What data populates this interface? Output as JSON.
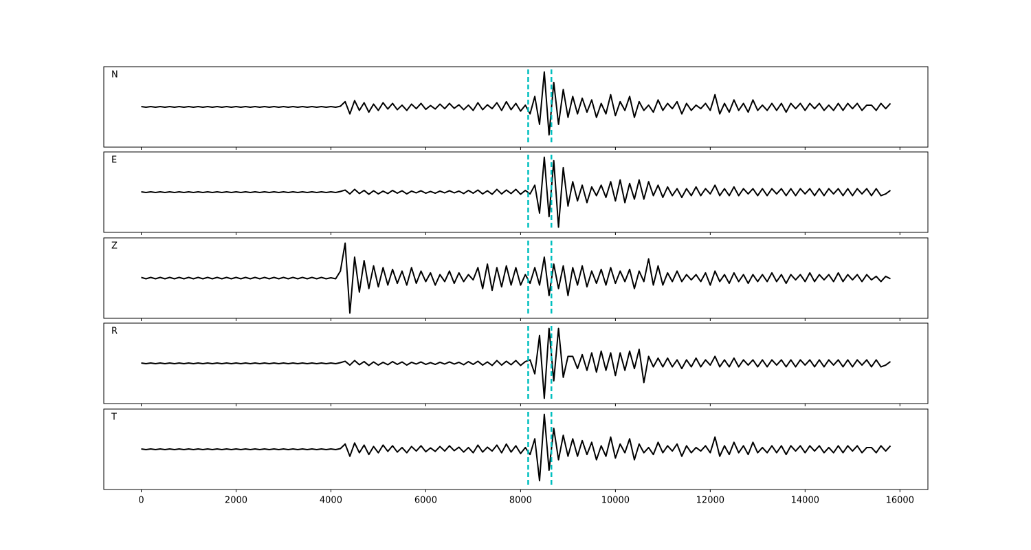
{
  "chart_data": {
    "type": "line",
    "xlim": [
      -790,
      16590
    ],
    "xticks": [
      0,
      2000,
      4000,
      6000,
      8000,
      10000,
      12000,
      14000,
      16000
    ],
    "ylim": [
      -1.15,
      1.15
    ],
    "vlines": {
      "values": [
        8160,
        8650
      ],
      "color": "#00bfbf"
    },
    "x": [
      0,
      100,
      200,
      300,
      400,
      500,
      600,
      700,
      800,
      900,
      1000,
      1100,
      1200,
      1300,
      1400,
      1500,
      1600,
      1700,
      1800,
      1900,
      2000,
      2100,
      2200,
      2300,
      2400,
      2500,
      2600,
      2700,
      2800,
      2900,
      3000,
      3100,
      3200,
      3300,
      3400,
      3500,
      3600,
      3700,
      3800,
      3900,
      4000,
      4100,
      4200,
      4300,
      4400,
      4500,
      4600,
      4700,
      4800,
      4900,
      5000,
      5100,
      5200,
      5300,
      5400,
      5500,
      5600,
      5700,
      5800,
      5900,
      6000,
      6100,
      6200,
      6300,
      6400,
      6500,
      6600,
      6700,
      6800,
      6900,
      7000,
      7100,
      7200,
      7300,
      7400,
      7500,
      7600,
      7700,
      7800,
      7900,
      8000,
      8100,
      8200,
      8300,
      8400,
      8500,
      8600,
      8700,
      8800,
      8900,
      9000,
      9100,
      9200,
      9300,
      9400,
      9500,
      9600,
      9700,
      9800,
      9900,
      10000,
      10100,
      10200,
      10300,
      10400,
      10500,
      10600,
      10700,
      10800,
      10900,
      11000,
      11100,
      11200,
      11300,
      11400,
      11500,
      11600,
      11700,
      11800,
      11900,
      12000,
      12100,
      12200,
      12300,
      12400,
      12500,
      12600,
      12700,
      12800,
      12900,
      13000,
      13100,
      13200,
      13300,
      13400,
      13500,
      13600,
      13700,
      13800,
      13900,
      14000,
      14100,
      14200,
      14300,
      14400,
      14500,
      14600,
      14700,
      14800,
      14900,
      15000,
      15100,
      15200,
      15300,
      15400,
      15500,
      15600,
      15700,
      15800
    ],
    "series": [
      {
        "name": "N",
        "color": "#000000",
        "values": [
          0.01,
          -0.01,
          0.01,
          -0.01,
          0.01,
          -0.01,
          0.01,
          -0.01,
          0.01,
          -0.01,
          0.01,
          -0.01,
          0.01,
          -0.01,
          0.01,
          -0.01,
          0.01,
          -0.01,
          0.01,
          -0.01,
          0.01,
          -0.01,
          0.01,
          -0.01,
          0.01,
          -0.01,
          0.01,
          -0.01,
          0.01,
          -0.01,
          0.01,
          -0.01,
          0.01,
          -0.01,
          0.01,
          -0.01,
          0.01,
          -0.01,
          0.01,
          -0.01,
          0.01,
          -0.01,
          0.02,
          0.15,
          -0.2,
          0.18,
          -0.1,
          0.12,
          -0.15,
          0.08,
          -0.1,
          0.12,
          -0.06,
          0.1,
          -0.08,
          0.05,
          -0.1,
          0.08,
          -0.05,
          0.1,
          -0.07,
          0.04,
          -0.06,
          0.08,
          -0.05,
          0.1,
          -0.04,
          0.06,
          -0.08,
          0.05,
          -0.1,
          0.12,
          -0.08,
          0.06,
          -0.05,
          0.12,
          -0.1,
          0.15,
          -0.08,
          0.1,
          -0.12,
          0.05,
          -0.2,
          0.3,
          -0.5,
          1.0,
          -0.8,
          0.7,
          -0.5,
          0.5,
          -0.3,
          0.3,
          -0.2,
          0.25,
          -0.15,
          0.2,
          -0.3,
          0.1,
          -0.2,
          0.35,
          -0.25,
          0.15,
          -0.1,
          0.3,
          -0.3,
          0.15,
          -0.1,
          0.05,
          -0.15,
          0.2,
          -0.1,
          0.1,
          -0.05,
          0.15,
          -0.2,
          0.1,
          -0.1,
          0.05,
          -0.05,
          0.1,
          -0.1,
          0.35,
          -0.2,
          0.1,
          -0.15,
          0.2,
          -0.1,
          0.1,
          -0.15,
          0.2,
          -0.1,
          0.05,
          -0.1,
          0.1,
          -0.1,
          0.1,
          -0.15,
          0.1,
          -0.05,
          0.1,
          -0.1,
          0.1,
          -0.05,
          0.1,
          -0.1,
          0.05,
          -0.1,
          0.1,
          -0.1,
          0.1,
          -0.05,
          0.1,
          -0.1,
          0.05,
          0.05,
          -0.1,
          0.1,
          -0.05,
          0.1
        ]
      },
      {
        "name": "E",
        "color": "#000000",
        "values": [
          0.01,
          -0.01,
          0.01,
          -0.01,
          0.01,
          -0.01,
          0.01,
          -0.01,
          0.01,
          -0.01,
          0.01,
          -0.01,
          0.01,
          -0.01,
          0.01,
          -0.01,
          0.01,
          -0.01,
          0.01,
          -0.01,
          0.01,
          -0.01,
          0.01,
          -0.01,
          0.01,
          -0.01,
          0.01,
          -0.01,
          0.01,
          -0.01,
          0.01,
          -0.01,
          0.01,
          -0.01,
          0.01,
          -0.01,
          0.01,
          -0.01,
          0.01,
          -0.01,
          0.01,
          -0.01,
          0.02,
          0.06,
          -0.05,
          0.08,
          -0.04,
          0.05,
          -0.06,
          0.04,
          -0.05,
          0.03,
          -0.04,
          0.05,
          -0.03,
          0.04,
          -0.05,
          0.03,
          -0.02,
          0.04,
          -0.03,
          0.02,
          -0.03,
          0.03,
          -0.02,
          0.04,
          -0.02,
          0.03,
          -0.04,
          0.05,
          -0.03,
          0.06,
          -0.05,
          0.04,
          -0.06,
          0.08,
          -0.05,
          0.06,
          -0.04,
          0.08,
          -0.06,
          0.05,
          -0.05,
          0.2,
          -0.6,
          1.0,
          -0.7,
          0.9,
          -1.0,
          0.7,
          -0.4,
          0.3,
          -0.25,
          0.2,
          -0.3,
          0.15,
          -0.1,
          0.2,
          -0.15,
          0.3,
          -0.25,
          0.35,
          -0.3,
          0.25,
          -0.2,
          0.35,
          -0.2,
          0.3,
          -0.1,
          0.2,
          -0.15,
          0.15,
          -0.1,
          0.1,
          -0.15,
          0.1,
          -0.1,
          0.15,
          -0.1,
          0.1,
          -0.05,
          0.2,
          -0.1,
          0.1,
          -0.1,
          0.15,
          -0.1,
          0.1,
          -0.05,
          0.1,
          -0.1,
          0.1,
          -0.1,
          0.1,
          -0.05,
          0.1,
          -0.1,
          0.1,
          -0.1,
          0.1,
          -0.05,
          0.1,
          -0.1,
          0.1,
          -0.1,
          0.1,
          -0.05,
          0.1,
          -0.1,
          0.1,
          -0.1,
          0.1,
          -0.05,
          0.1,
          -0.1,
          0.1,
          -0.1,
          -0.05,
          0.05
        ]
      },
      {
        "name": "Z",
        "color": "#000000",
        "values": [
          0.02,
          -0.02,
          0.02,
          -0.02,
          0.02,
          -0.02,
          0.02,
          -0.02,
          0.02,
          -0.02,
          0.02,
          -0.02,
          0.02,
          -0.02,
          0.02,
          -0.02,
          0.02,
          -0.02,
          0.02,
          -0.02,
          0.02,
          -0.02,
          0.02,
          -0.02,
          0.02,
          -0.02,
          0.02,
          -0.02,
          0.02,
          -0.02,
          0.02,
          -0.02,
          0.02,
          -0.02,
          0.02,
          -0.02,
          0.02,
          -0.02,
          0.02,
          -0.02,
          0.01,
          -0.02,
          0.2,
          1.0,
          -1.0,
          0.6,
          -0.4,
          0.5,
          -0.3,
          0.35,
          -0.25,
          0.3,
          -0.2,
          0.25,
          -0.15,
          0.2,
          -0.2,
          0.3,
          -0.15,
          0.2,
          -0.1,
          0.15,
          -0.2,
          0.1,
          -0.1,
          0.2,
          -0.15,
          0.15,
          -0.1,
          0.1,
          -0.05,
          0.3,
          -0.3,
          0.4,
          -0.35,
          0.3,
          -0.25,
          0.35,
          -0.2,
          0.3,
          -0.2,
          0.1,
          -0.15,
          0.3,
          -0.2,
          0.6,
          -0.5,
          0.4,
          -0.3,
          0.35,
          -0.5,
          0.3,
          -0.2,
          0.35,
          -0.25,
          0.2,
          -0.15,
          0.25,
          -0.2,
          0.3,
          -0.15,
          0.2,
          -0.1,
          0.25,
          -0.3,
          0.2,
          -0.1,
          0.55,
          -0.2,
          0.35,
          -0.2,
          0.15,
          -0.1,
          0.2,
          -0.1,
          0.1,
          -0.05,
          0.1,
          -0.1,
          0.15,
          -0.2,
          0.2,
          -0.1,
          0.1,
          -0.15,
          0.15,
          -0.1,
          0.1,
          -0.15,
          0.1,
          -0.1,
          0.1,
          -0.1,
          0.15,
          -0.1,
          0.1,
          -0.15,
          0.1,
          -0.05,
          0.1,
          -0.1,
          0.15,
          -0.1,
          0.1,
          -0.05,
          0.1,
          -0.1,
          0.15,
          -0.1,
          0.1,
          -0.05,
          0.1,
          -0.1,
          0.1,
          -0.05,
          0.05,
          -0.1,
          0.05,
          -0.02
        ]
      },
      {
        "name": "R",
        "color": "#000000",
        "values": [
          0.01,
          -0.01,
          0.01,
          -0.01,
          0.01,
          -0.01,
          0.01,
          -0.01,
          0.01,
          -0.01,
          0.01,
          -0.01,
          0.01,
          -0.01,
          0.01,
          -0.01,
          0.01,
          -0.01,
          0.01,
          -0.01,
          0.01,
          -0.01,
          0.01,
          -0.01,
          0.01,
          -0.01,
          0.01,
          -0.01,
          0.01,
          -0.01,
          0.01,
          -0.01,
          0.01,
          -0.01,
          0.01,
          -0.01,
          0.01,
          -0.01,
          0.01,
          -0.01,
          0.01,
          -0.01,
          0.02,
          0.06,
          -0.05,
          0.08,
          -0.04,
          0.05,
          -0.06,
          0.04,
          -0.05,
          0.03,
          -0.04,
          0.05,
          -0.03,
          0.04,
          -0.05,
          0.03,
          -0.02,
          0.04,
          -0.03,
          0.02,
          -0.03,
          0.03,
          -0.02,
          0.04,
          -0.02,
          0.03,
          -0.04,
          0.05,
          -0.03,
          0.06,
          -0.05,
          0.04,
          -0.06,
          0.08,
          -0.05,
          0.06,
          -0.04,
          0.08,
          -0.06,
          0.05,
          0.1,
          -0.3,
          0.8,
          -1.0,
          1.0,
          -0.5,
          1.0,
          -0.4,
          0.2,
          0.2,
          -0.15,
          0.25,
          -0.2,
          0.3,
          -0.25,
          0.35,
          -0.2,
          0.3,
          -0.35,
          0.3,
          -0.2,
          0.35,
          -0.15,
          0.4,
          -0.55,
          0.2,
          -0.1,
          0.15,
          -0.1,
          0.15,
          -0.1,
          0.1,
          -0.15,
          0.1,
          -0.1,
          0.15,
          -0.1,
          0.1,
          -0.05,
          0.2,
          -0.1,
          0.1,
          -0.1,
          0.15,
          -0.1,
          0.1,
          -0.05,
          0.1,
          -0.1,
          0.1,
          -0.1,
          0.1,
          -0.05,
          0.1,
          -0.1,
          0.1,
          -0.1,
          0.1,
          -0.05,
          0.1,
          -0.1,
          0.1,
          -0.1,
          0.1,
          -0.05,
          0.1,
          -0.1,
          0.1,
          -0.1,
          0.1,
          -0.05,
          0.1,
          -0.1,
          0.1,
          -0.1,
          -0.05,
          0.05
        ]
      },
      {
        "name": "T",
        "color": "#000000",
        "values": [
          0.01,
          -0.01,
          0.01,
          -0.01,
          0.01,
          -0.01,
          0.01,
          -0.01,
          0.01,
          -0.01,
          0.01,
          -0.01,
          0.01,
          -0.01,
          0.01,
          -0.01,
          0.01,
          -0.01,
          0.01,
          -0.01,
          0.01,
          -0.01,
          0.01,
          -0.01,
          0.01,
          -0.01,
          0.01,
          -0.01,
          0.01,
          -0.01,
          0.01,
          -0.01,
          0.01,
          -0.01,
          0.01,
          -0.01,
          0.01,
          -0.01,
          0.01,
          -0.01,
          0.01,
          -0.01,
          0.02,
          0.15,
          -0.2,
          0.18,
          -0.1,
          0.12,
          -0.15,
          0.08,
          -0.1,
          0.12,
          -0.06,
          0.1,
          -0.08,
          0.05,
          -0.1,
          0.08,
          -0.05,
          0.1,
          -0.07,
          0.04,
          -0.06,
          0.08,
          -0.05,
          0.1,
          -0.04,
          0.06,
          -0.08,
          0.05,
          -0.1,
          0.12,
          -0.08,
          0.06,
          -0.05,
          0.12,
          -0.1,
          0.15,
          -0.08,
          0.1,
          -0.12,
          0.05,
          -0.15,
          0.3,
          -0.9,
          1.0,
          -0.6,
          0.6,
          -0.3,
          0.4,
          -0.2,
          0.3,
          -0.2,
          0.25,
          -0.15,
          0.2,
          -0.3,
          0.1,
          -0.2,
          0.35,
          -0.25,
          0.15,
          -0.1,
          0.3,
          -0.3,
          0.15,
          -0.1,
          0.05,
          -0.15,
          0.2,
          -0.1,
          0.1,
          -0.05,
          0.15,
          -0.2,
          0.1,
          -0.1,
          0.05,
          -0.05,
          0.1,
          -0.1,
          0.35,
          -0.2,
          0.1,
          -0.15,
          0.2,
          -0.1,
          0.1,
          -0.15,
          0.2,
          -0.1,
          0.05,
          -0.1,
          0.1,
          -0.1,
          0.1,
          -0.15,
          0.1,
          -0.05,
          0.1,
          -0.1,
          0.1,
          -0.05,
          0.1,
          -0.1,
          0.05,
          -0.1,
          0.1,
          -0.1,
          0.1,
          -0.05,
          0.1,
          -0.1,
          0.05,
          0.05,
          -0.1,
          0.1,
          -0.05,
          0.1
        ]
      }
    ]
  }
}
